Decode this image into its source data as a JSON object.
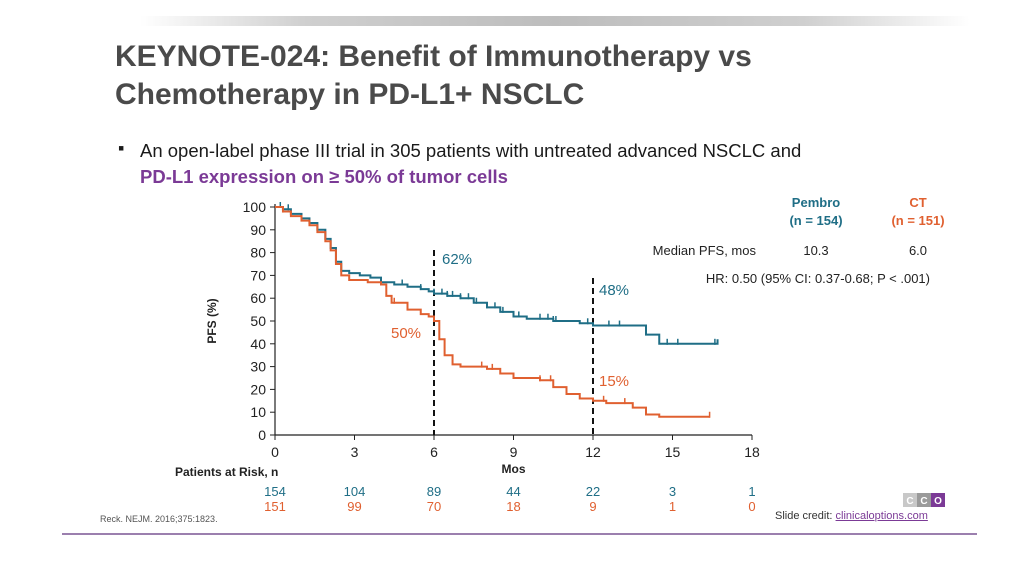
{
  "slide": {
    "title_line1": "KEYNOTE-024: Benefit of Immunotherapy vs",
    "title_line2": "Chemotherapy in PD-L1+ NSCLC",
    "bullet_text": "An open-label phase III trial in 305 patients with untreated advanced NSCLC and",
    "bullet_highlight": "PD-L1 expression on ≥ 50% of tumor cells",
    "bullet_marker": "▪",
    "reference": "Reck. NEJM. 2016;375:1823.",
    "credit_label": "Slide credit:",
    "credit_link": "clinicaloptions.com",
    "logo_text": "CCO"
  },
  "colors": {
    "pembro": "#1f6e86",
    "ct": "#e06030",
    "purple": "#7b3a96"
  },
  "chart_data": {
    "type": "line",
    "title": "",
    "xlabel": "Mos",
    "ylabel": "PFS (%)",
    "xlim": [
      0,
      18
    ],
    "ylim": [
      0,
      100
    ],
    "x_ticks": [
      0,
      3,
      6,
      9,
      12,
      15,
      18
    ],
    "y_ticks": [
      0,
      10,
      20,
      30,
      40,
      50,
      60,
      70,
      80,
      90,
      100
    ],
    "series": [
      {
        "name": "Pembro",
        "color": "#1f6e86",
        "points": [
          [
            0,
            100
          ],
          [
            0.3,
            99
          ],
          [
            0.6,
            97
          ],
          [
            1.0,
            95
          ],
          [
            1.3,
            93
          ],
          [
            1.6,
            90
          ],
          [
            1.9,
            86
          ],
          [
            2.1,
            82
          ],
          [
            2.3,
            76
          ],
          [
            2.5,
            72
          ],
          [
            2.8,
            71
          ],
          [
            3.2,
            70
          ],
          [
            3.6,
            69
          ],
          [
            4.0,
            67
          ],
          [
            4.5,
            66
          ],
          [
            5.0,
            65
          ],
          [
            5.5,
            64
          ],
          [
            5.8,
            63
          ],
          [
            6.0,
            62
          ],
          [
            6.5,
            61
          ],
          [
            7.0,
            60
          ],
          [
            7.5,
            58
          ],
          [
            8.0,
            56
          ],
          [
            8.5,
            54
          ],
          [
            9.0,
            52
          ],
          [
            9.5,
            51
          ],
          [
            10.5,
            50
          ],
          [
            11.5,
            49
          ],
          [
            12.0,
            48
          ],
          [
            13.0,
            48
          ],
          [
            14.0,
            44
          ],
          [
            14.5,
            40
          ],
          [
            15.0,
            40
          ],
          [
            16.5,
            40
          ],
          [
            16.7,
            42
          ]
        ],
        "censor_x": [
          0.2,
          0.5,
          4.8,
          5.5,
          6.0,
          6.3,
          6.5,
          6.7,
          7.0,
          7.3,
          7.6,
          8.0,
          8.3,
          8.6,
          9.2,
          10.0,
          10.3,
          10.5,
          10.6,
          11.8,
          12.6,
          13.0,
          14.8,
          15.2,
          16.6
        ]
      },
      {
        "name": "CT",
        "color": "#e06030",
        "points": [
          [
            0,
            100
          ],
          [
            0.3,
            98
          ],
          [
            0.6,
            96
          ],
          [
            1.0,
            94
          ],
          [
            1.3,
            92
          ],
          [
            1.6,
            89
          ],
          [
            1.9,
            85
          ],
          [
            2.1,
            81
          ],
          [
            2.3,
            75
          ],
          [
            2.5,
            70
          ],
          [
            2.8,
            68
          ],
          [
            3.5,
            67
          ],
          [
            4.0,
            66
          ],
          [
            4.2,
            61
          ],
          [
            4.4,
            58
          ],
          [
            5.0,
            55
          ],
          [
            5.5,
            53
          ],
          [
            5.8,
            52
          ],
          [
            6.0,
            50
          ],
          [
            6.2,
            42
          ],
          [
            6.4,
            35
          ],
          [
            6.7,
            31
          ],
          [
            7.0,
            30
          ],
          [
            8.0,
            29
          ],
          [
            8.5,
            27
          ],
          [
            9.0,
            25
          ],
          [
            10.0,
            24
          ],
          [
            10.5,
            21
          ],
          [
            11.0,
            18
          ],
          [
            11.5,
            16
          ],
          [
            12.0,
            15
          ],
          [
            12.5,
            14
          ],
          [
            13.5,
            12
          ],
          [
            14.0,
            9
          ],
          [
            14.5,
            8
          ],
          [
            15.5,
            8
          ],
          [
            16.4,
            8
          ]
        ],
        "censor_x": [
          0.3,
          4.5,
          7.8,
          8.2,
          8.5,
          10.0,
          10.4,
          12.4,
          13.2,
          16.4
        ]
      }
    ],
    "landmarks": [
      {
        "x": 6,
        "pembro_label": "62%",
        "ct_label": "50%"
      },
      {
        "x": 12,
        "pembro_label": "48%",
        "ct_label": "15%"
      }
    ],
    "risk_table": {
      "label": "Patients at Risk, n",
      "times": [
        0,
        3,
        6,
        9,
        12,
        15,
        18
      ],
      "pembro": [
        "154",
        "104",
        "89",
        "44",
        "22",
        "3",
        "1"
      ],
      "ct": [
        "151",
        "99",
        "70",
        "18",
        "9",
        "1",
        "0"
      ]
    },
    "summary_table": {
      "pembro_header": "Pembro",
      "pembro_n": "(n = 154)",
      "ct_header": "CT",
      "ct_n": "(n = 151)",
      "row_label": "Median PFS, mos",
      "pembro_median": "10.3",
      "ct_median": "6.0",
      "hr_text": "HR: 0.50 (95% CI: 0.37-0.68; P < .001)"
    }
  }
}
